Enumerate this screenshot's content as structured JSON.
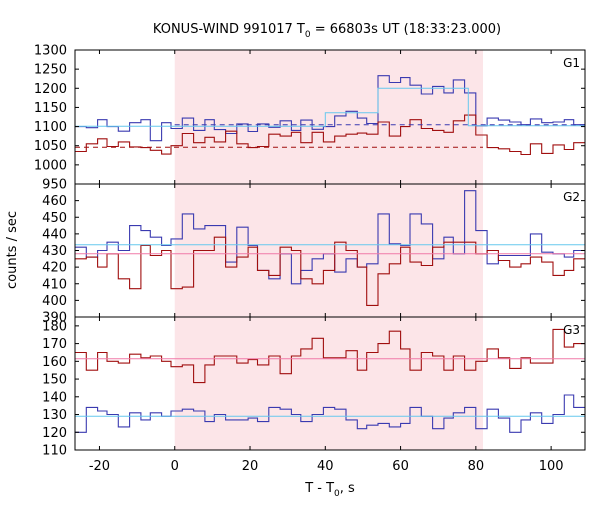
{
  "chart_data": {
    "type": "line",
    "title": "KONUS-WIND 991017 T",
    "title_sub": "0",
    "title_rest": " = 66803s UT (18:33:23.000)",
    "xlabel": "T - T",
    "xlabel_sub": "0",
    "xlabel_rest": ", s",
    "ylabel": "counts / sec",
    "xlim": [
      -26.5,
      109
    ],
    "x_ticks": [
      -20,
      0,
      20,
      40,
      60,
      80,
      100
    ],
    "highlight_interval": [
      0,
      81.9
    ],
    "colors": {
      "blue": "#3a3ab0",
      "red": "#a00e0e",
      "light_blue": "#66c8ee",
      "pink": "#f07aa8",
      "shade": "#fce5e8"
    },
    "panels": [
      {
        "label": "G1",
        "ylim": [
          950,
          1300
        ],
        "y_ticks": [
          950,
          1000,
          1050,
          1100,
          1150,
          1200,
          1250,
          1300
        ],
        "bin_edges": [
          -26.5,
          -23.5,
          -20.5,
          -18,
          -15,
          -12,
          -9,
          -6.5,
          -3.5,
          -1,
          2,
          5,
          8,
          10.5,
          13.5,
          16.5,
          19.5,
          22,
          25,
          28,
          31,
          33.5,
          36.5,
          39.5,
          42.5,
          45.5,
          48.5,
          51,
          54,
          57,
          60,
          62.5,
          65.5,
          68.5,
          71.5,
          74,
          77,
          80,
          83,
          86,
          89,
          92,
          94.5,
          97.5,
          100.5,
          103.5,
          106,
          109
        ],
        "series": [
          {
            "color": "blue",
            "values": [
              1100,
              1097,
              1118,
              1100,
              1088,
              1110,
              1118,
              1063,
              1110,
              1095,
              1122,
              1090,
              1118,
              1092,
              1082,
              1107,
              1087,
              1107,
              1098,
              1115,
              1090,
              1117,
              1093,
              1100,
              1128,
              1140,
              1122,
              1108,
              1233,
              1215,
              1228,
              1208,
              1185,
              1205,
              1188,
              1222,
              1188,
              1102,
              1122,
              1117,
              1112,
              1105,
              1120,
              1110,
              1112,
              1118,
              1105
            ]
          },
          {
            "color": "red",
            "values": [
              1035,
              1055,
              1068,
              1048,
              1060,
              1047,
              1045,
              1038,
              1028,
              1050,
              1082,
              1058,
              1072,
              1060,
              1088,
              1055,
              1045,
              1048,
              1080,
              1075,
              1085,
              1058,
              1085,
              1060,
              1075,
              1080,
              1083,
              1080,
              1112,
              1075,
              1100,
              1118,
              1095,
              1090,
              1085,
              1115,
              1130,
              1078,
              1045,
              1042,
              1035,
              1027,
              1055,
              1030,
              1052,
              1040,
              1058
            ]
          }
        ],
        "fits": [
          {
            "color": "light_blue",
            "x": [
              -26.5,
              40,
              40,
              54,
              54,
              78,
              78,
              109
            ],
            "y": [
              1101,
              1101,
              1136,
              1136,
              1200,
              1200,
              1102,
              1102
            ]
          },
          {
            "color": "blue",
            "dashed": true,
            "x": [
              0,
              109
            ],
            "y": [
              1105,
              1105
            ]
          },
          {
            "color": "red",
            "dashed": true,
            "x": [
              -26.5,
              81.9
            ],
            "y": [
              1046,
              1046
            ]
          }
        ]
      },
      {
        "label": "G2",
        "ylim": [
          390,
          470
        ],
        "y_ticks": [
          390,
          400,
          410,
          420,
          430,
          440,
          450,
          460
        ],
        "bin_edges": [
          -26.5,
          -23.5,
          -20.5,
          -18,
          -15,
          -12,
          -9,
          -6.5,
          -3.5,
          -1,
          2,
          5,
          8,
          10.5,
          13.5,
          16.5,
          19.5,
          22,
          25,
          28,
          31,
          33.5,
          36.5,
          39.5,
          42.5,
          45.5,
          48.5,
          51,
          54,
          57,
          60,
          62.5,
          65.5,
          68.5,
          71.5,
          74,
          77,
          80,
          83,
          86,
          89,
          92,
          94.5,
          97.5,
          100.5,
          103.5,
          106,
          109
        ],
        "series": [
          {
            "color": "blue",
            "values": [
              432,
              426,
              430,
              435,
              430,
              445,
              442,
              438,
              433,
              437,
              452,
              443,
              445,
              445,
              423,
              444,
              433,
              418,
              413,
              428,
              410,
              418,
              425,
              428,
              417,
              425,
              420,
              422,
              452,
              434,
              433,
              452,
              446,
              425,
              438,
              428,
              466,
              442,
              422,
              427,
              427,
              427,
              440,
              429,
              428,
              426,
              430
            ]
          },
          {
            "color": "red",
            "values": [
              425,
              426,
              420,
              428,
              413,
              407,
              433,
              427,
              430,
              407,
              408,
              430,
              430,
              438,
              420,
              426,
              432,
              418,
              415,
              432,
              430,
              413,
              410,
              418,
              435,
              430,
              420,
              397,
              416,
              422,
              432,
              423,
              421,
              432,
              435,
              435,
              435,
              428,
              430,
              424,
              420,
              422,
              426,
              423,
              415,
              418,
              425
            ]
          }
        ],
        "fits": [
          {
            "color": "light_blue",
            "x": [
              -26.5,
              109
            ],
            "y": [
              433.5,
              433.5
            ]
          },
          {
            "color": "pink",
            "x": [
              -26.5,
              109
            ],
            "y": [
              428,
              428
            ]
          }
        ]
      },
      {
        "label": "G3",
        "ylim": [
          110,
          185
        ],
        "y_ticks": [
          110,
          120,
          130,
          140,
          150,
          160,
          170,
          180
        ],
        "bin_edges": [
          -26.5,
          -23.5,
          -20.5,
          -18,
          -15,
          -12,
          -9,
          -6.5,
          -3.5,
          -1,
          2,
          5,
          8,
          10.5,
          13.5,
          16.5,
          19.5,
          22,
          25,
          28,
          31,
          33.5,
          36.5,
          39.5,
          42.5,
          45.5,
          48.5,
          51,
          54,
          57,
          60,
          62.5,
          65.5,
          68.5,
          71.5,
          74,
          77,
          80,
          83,
          86,
          89,
          92,
          94.5,
          97.5,
          100.5,
          103.5,
          106,
          109
        ],
        "series": [
          {
            "color": "blue",
            "values": [
              120,
              134,
              132,
              130,
              123,
              131,
              127,
              131,
              129,
              132,
              133,
              132,
              126,
              130,
              127,
              127,
              128,
              126,
              134,
              133,
              130,
              126,
              130,
              134,
              133,
              127,
              122,
              124,
              125,
              123,
              125,
              134,
              129,
              122,
              128,
              131,
              134,
              122,
              133,
              128,
              120,
              127,
              131,
              125,
              130,
              141,
              134
            ]
          },
          {
            "color": "red",
            "values": [
              165,
              155,
              165,
              160,
              159,
              164,
              162,
              163,
              160,
              157,
              158,
              148,
              158,
              163,
              163,
              159,
              161,
              158,
              163,
              153,
              163,
              167,
              173,
              162,
              162,
              166,
              155,
              165,
              170,
              177,
              167,
              155,
              165,
              163,
              155,
              163,
              155,
              160,
              167,
              162,
              156,
              162,
              159,
              159,
              178,
              168,
              170
            ]
          }
        ],
        "fits": [
          {
            "color": "light_blue",
            "x": [
              -26.5,
              109
            ],
            "y": [
              129,
              129
            ]
          },
          {
            "color": "pink",
            "x": [
              -26.5,
              109
            ],
            "y": [
              161.5,
              161.5
            ]
          }
        ]
      }
    ]
  }
}
